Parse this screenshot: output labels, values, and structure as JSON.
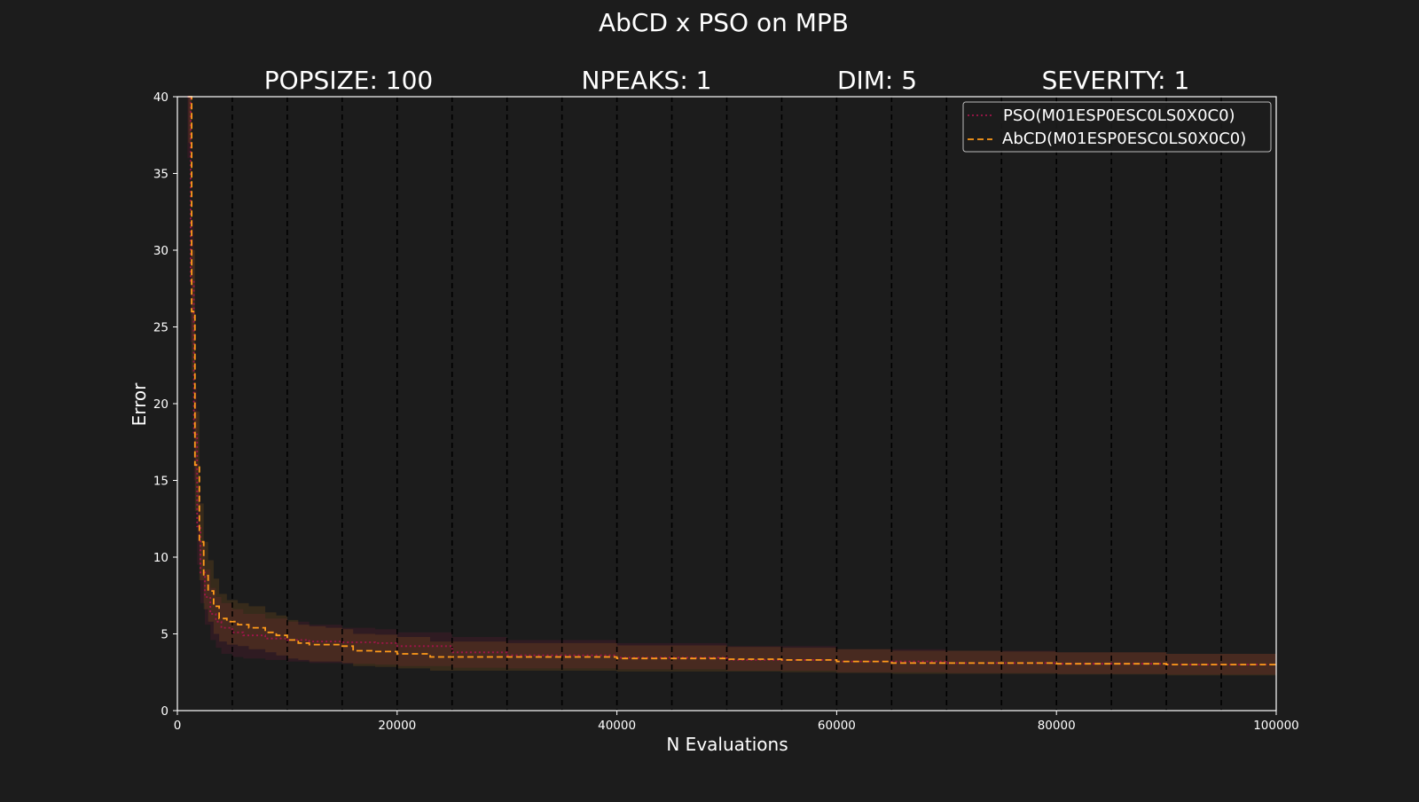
{
  "figure": {
    "background": "#1c1c1c",
    "suptitle": "AbCD x PSO on MPB",
    "subtitles": [
      "POPSIZE: 100",
      "NPEAKS: 1",
      "DIM: 5",
      "SEVERITY: 1"
    ]
  },
  "chart_data": {
    "type": "line",
    "title": "AbCD x PSO on MPB",
    "xlabel": "N Evaluations",
    "ylabel": "Error",
    "xlim": [
      0,
      100000
    ],
    "ylim": [
      0,
      40
    ],
    "xticks": [
      0,
      20000,
      40000,
      60000,
      80000,
      100000
    ],
    "yticks": [
      0,
      5,
      10,
      15,
      20,
      25,
      30,
      35,
      40
    ],
    "grid": false,
    "legend_position": "top-right",
    "vlines": [
      5000,
      10000,
      15000,
      20000,
      25000,
      30000,
      35000,
      40000,
      45000,
      50000,
      55000,
      60000,
      65000,
      70000,
      75000,
      80000,
      85000,
      90000,
      95000
    ],
    "series": [
      {
        "name": "PSO(M01ESP0ESC0LS0X0C0)",
        "color": "#a0154a",
        "linestyle": "dotted",
        "x": [
          900,
          1200,
          1500,
          1800,
          2100,
          2500,
          3000,
          3500,
          4000,
          5000,
          6000,
          8000,
          10000,
          12000,
          15000,
          18000,
          20000,
          25000,
          30000,
          40000,
          50000,
          60000,
          70000,
          80000,
          90000,
          100000
        ],
        "y": [
          40,
          28,
          18,
          12,
          9,
          7.4,
          6.3,
          5.8,
          5.4,
          5.1,
          4.9,
          4.7,
          4.6,
          4.5,
          4.45,
          4.4,
          4.2,
          3.8,
          3.6,
          3.45,
          3.3,
          3.2,
          3.1,
          3.05,
          3.0,
          3.0
        ],
        "band_low": [
          36,
          24,
          15,
          9.5,
          7,
          5.6,
          4.6,
          4.1,
          3.7,
          3.5,
          3.4,
          3.3,
          3.2,
          3.1,
          3.05,
          3.0,
          2.9,
          2.8,
          2.75,
          2.7,
          2.6,
          2.5,
          2.45,
          2.4,
          2.35,
          2.35
        ],
        "band_high": [
          40,
          32,
          21,
          14.5,
          11,
          9.2,
          8.0,
          7.4,
          7.0,
          6.6,
          6.3,
          6.0,
          5.8,
          5.6,
          5.4,
          5.3,
          5.1,
          4.8,
          4.6,
          4.4,
          4.2,
          4.0,
          3.9,
          3.8,
          3.7,
          3.7
        ]
      },
      {
        "name": "AbCD(M01ESP0ESC0LS0X0C0)",
        "color": "#ff9b1a",
        "linestyle": "dashed",
        "x": [
          1000,
          1300,
          1600,
          2000,
          2400,
          2800,
          3300,
          3800,
          4500,
          5500,
          6500,
          8000,
          9000,
          10000,
          11000,
          12000,
          13500,
          15000,
          16000,
          18000,
          20000,
          23000,
          30000,
          40000,
          50000,
          55000,
          60000,
          65000,
          75000,
          80000,
          90000,
          100000
        ],
        "y": [
          40,
          26,
          16,
          11,
          8.8,
          7.8,
          6.8,
          6.0,
          5.8,
          5.6,
          5.4,
          5.1,
          4.9,
          4.6,
          4.4,
          4.3,
          4.3,
          4.2,
          3.9,
          3.85,
          3.7,
          3.5,
          3.5,
          3.4,
          3.35,
          3.3,
          3.2,
          3.1,
          3.1,
          3.05,
          3.0,
          3.0
        ],
        "band_low": [
          37,
          22,
          13,
          8.5,
          6.6,
          5.8,
          5.0,
          4.5,
          4.3,
          4.2,
          4.0,
          3.8,
          3.6,
          3.4,
          3.3,
          3.2,
          3.2,
          3.1,
          2.9,
          2.85,
          2.75,
          2.6,
          2.6,
          2.55,
          2.55,
          2.5,
          2.45,
          2.4,
          2.4,
          2.35,
          2.3,
          2.3
        ],
        "band_high": [
          40,
          30,
          19.5,
          13.5,
          11,
          9.8,
          8.6,
          7.6,
          7.2,
          7.0,
          6.8,
          6.4,
          6.2,
          5.9,
          5.6,
          5.5,
          5.4,
          5.3,
          5.0,
          4.95,
          4.8,
          4.5,
          4.4,
          4.25,
          4.15,
          4.1,
          4.0,
          3.9,
          3.85,
          3.8,
          3.7,
          3.7
        ]
      }
    ]
  }
}
